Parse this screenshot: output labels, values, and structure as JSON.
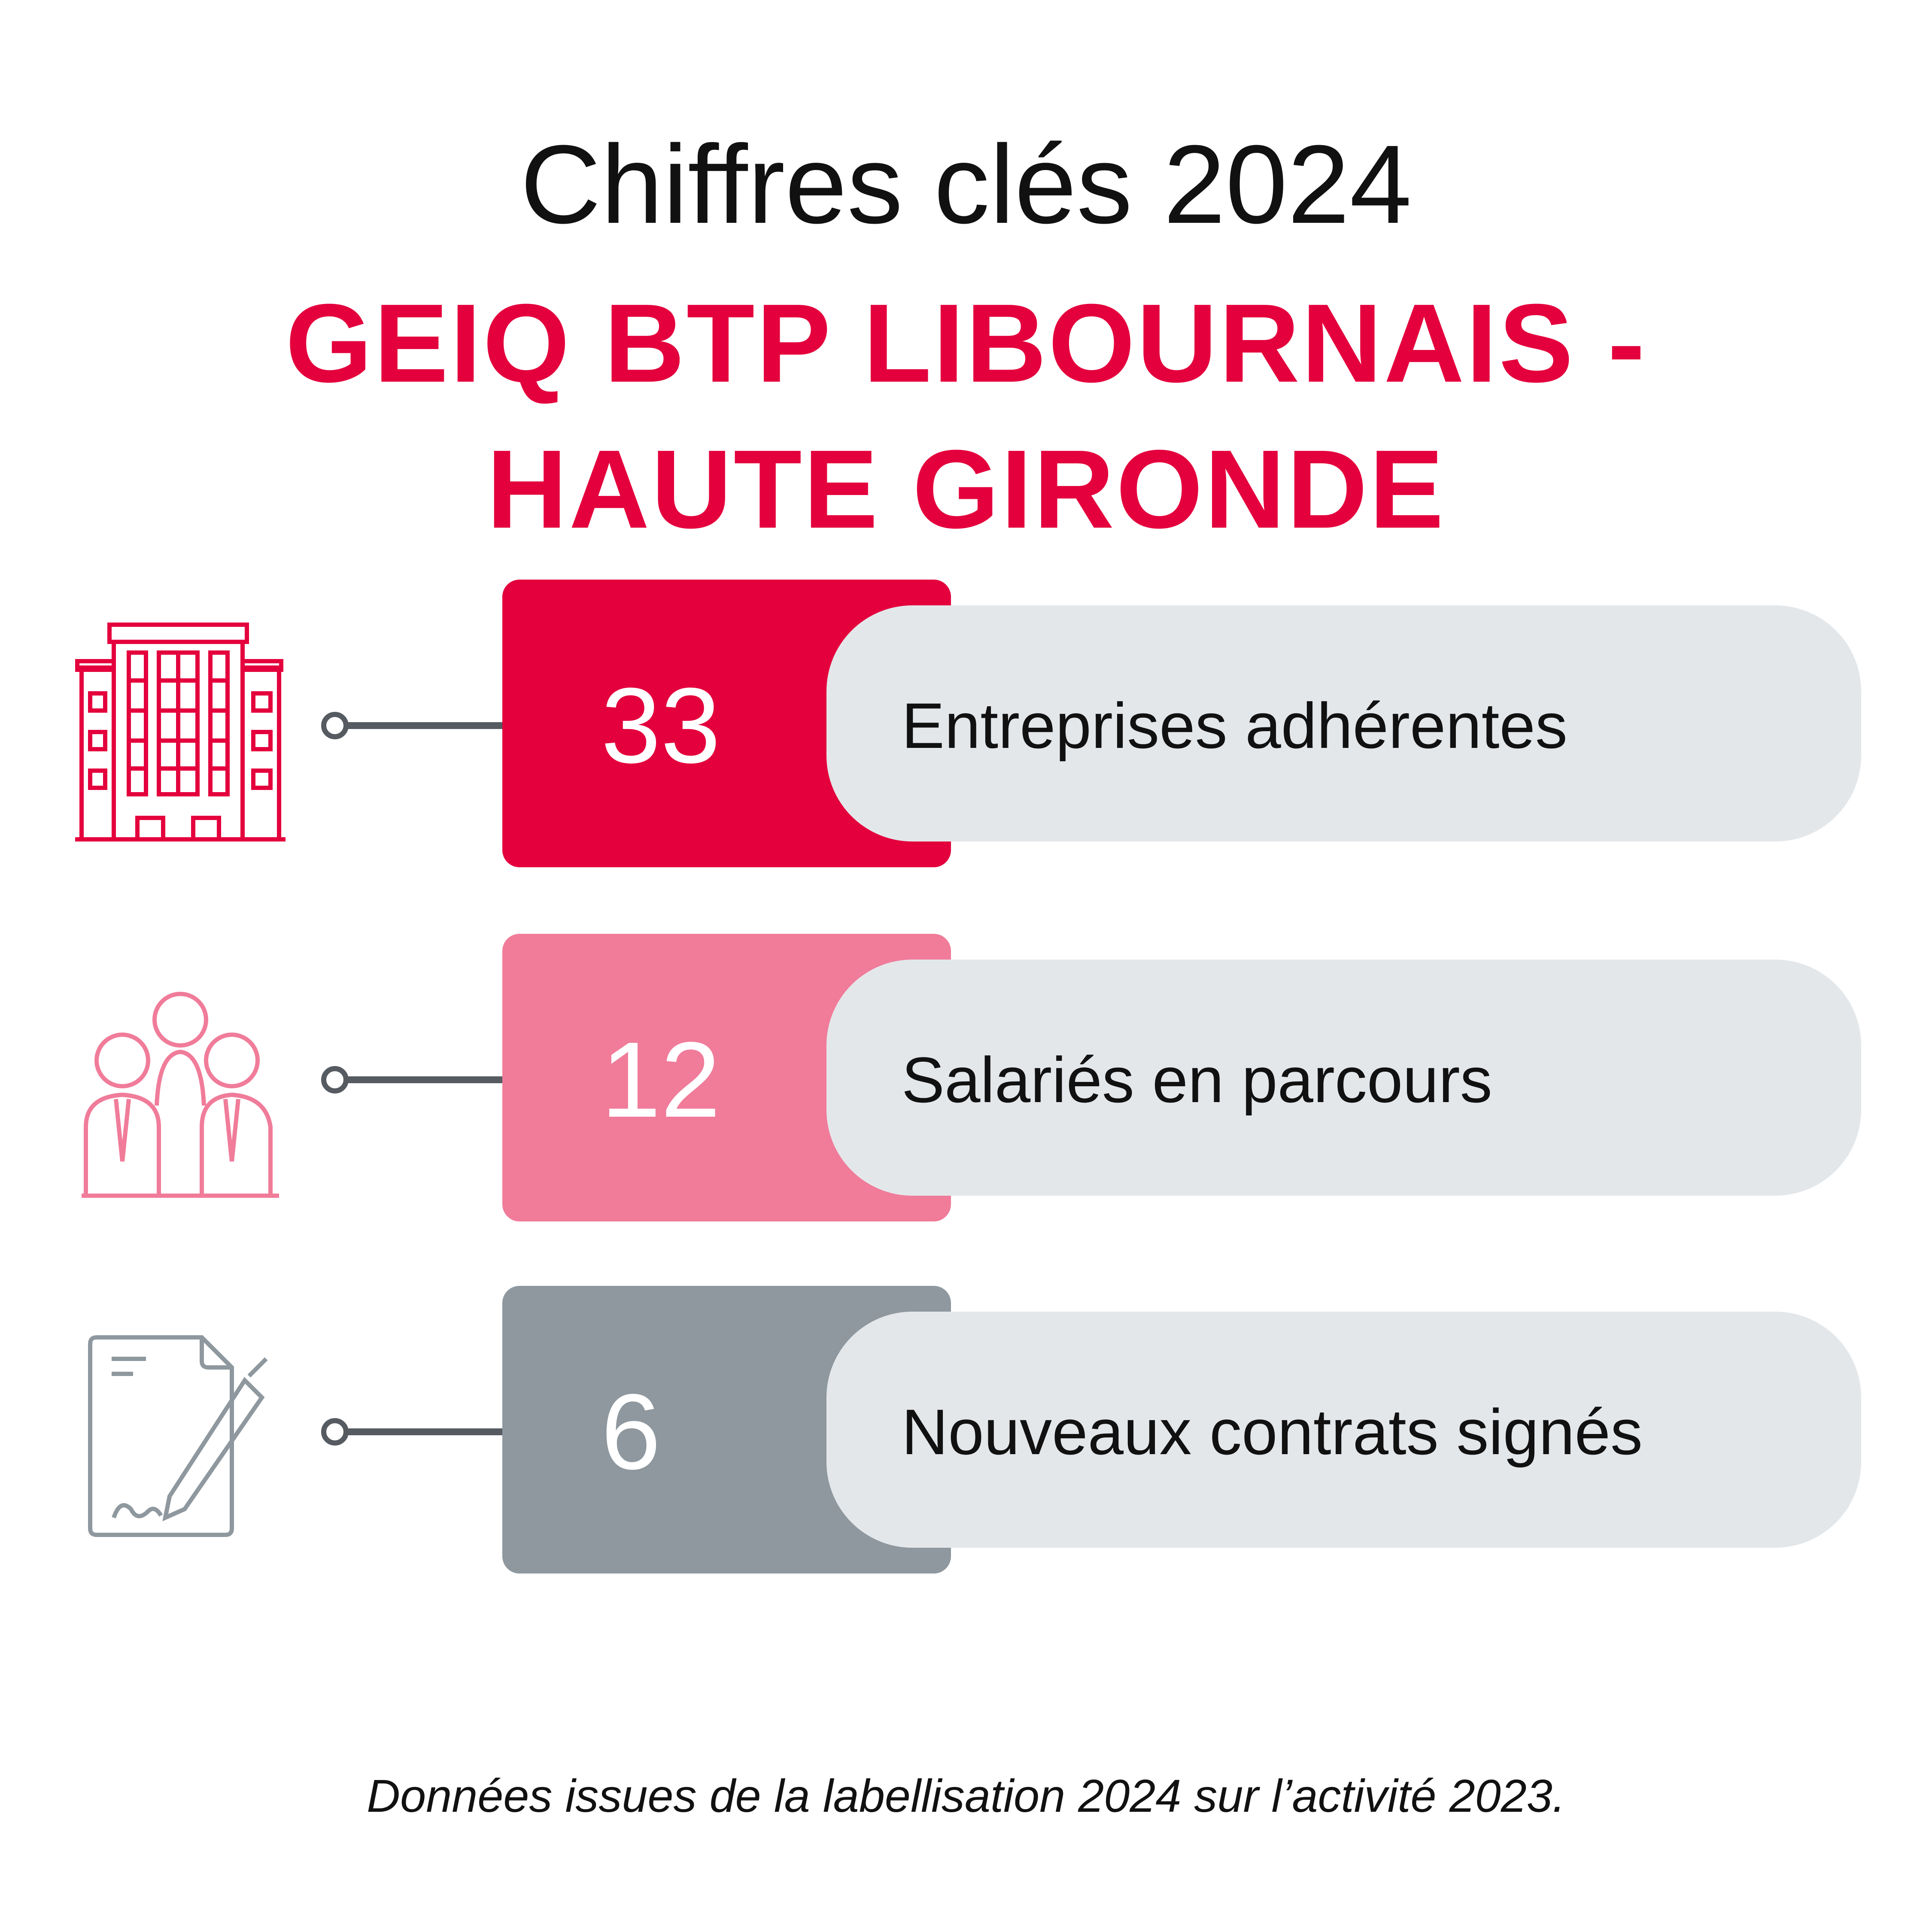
{
  "header": {
    "title": "Chiffres clés 2024",
    "subtitle_line1": "GEIQ BTP LIBOURNAIS -",
    "subtitle_line2": "HAUTE GIRONDE"
  },
  "stats": [
    {
      "value": "33",
      "label": "Entreprises adhérentes",
      "icon": "building-icon",
      "color": "#e4003d"
    },
    {
      "value": "12",
      "label": "Salariés en parcours",
      "icon": "people-icon",
      "color": "#f07c9a"
    },
    {
      "value": "6",
      "label": "Nouveaux contrats signés",
      "icon": "signed-contract-icon",
      "color": "#8e989e"
    }
  ],
  "footnote": "Données issues de la labellisation 2024 sur l’activité 2023.",
  "colors": {
    "brand_red": "#e4003d",
    "pink": "#f07c9a",
    "gray": "#8e989e",
    "pill_bg": "#e4e7ea",
    "connector": "#555b60"
  }
}
